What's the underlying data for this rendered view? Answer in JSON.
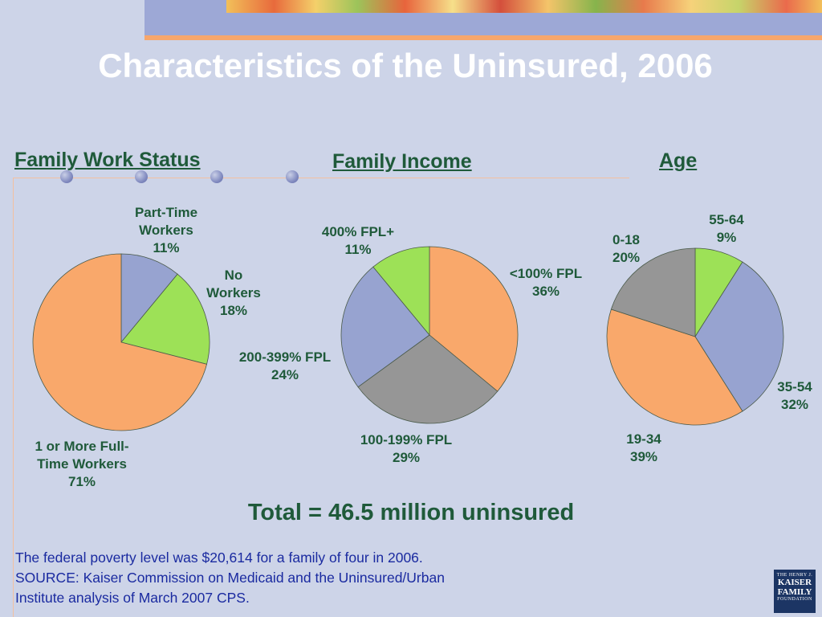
{
  "slide": {
    "title": "Characteristics of the Uninsured, 2006",
    "total": "Total = 46.5 million uninsured",
    "footnote_1": "The federal poverty level was $20,614 for a family of four in 2006.",
    "footnote_2": "SOURCE: Kaiser Commission on Medicaid and the Uninsured/Urban",
    "footnote_3": "Institute analysis of March 2007 CPS.",
    "logo": {
      "line1": "THE HENRY J.",
      "line2": "KAISER",
      "line3": "FAMILY",
      "line4": "FOUNDATION"
    }
  },
  "colors": {
    "orange": "#f9a86b",
    "blue": "#97a3d0",
    "green": "#9de157",
    "gray": "#969696",
    "heading": "#1f5a3a",
    "note": "#1a2aa0"
  },
  "chart_data": [
    {
      "type": "pie",
      "title": "Family Work Status",
      "slices": [
        {
          "name": "Part-Time Workers",
          "value": 11,
          "color": "blue",
          "label_lines": [
            "Part-Time",
            "Workers",
            "11%"
          ]
        },
        {
          "name": "No Workers",
          "value": 18,
          "color": "green",
          "label_lines": [
            "No",
            "Workers",
            "18%"
          ]
        },
        {
          "name": "1 or More Full-Time Workers",
          "value": 71,
          "color": "orange",
          "label_lines": [
            "1 or More Full-",
            "Time Workers",
            "71%"
          ]
        }
      ]
    },
    {
      "type": "pie",
      "title": "Family Income",
      "slices": [
        {
          "name": "<100% FPL",
          "value": 36,
          "color": "orange",
          "label_lines": [
            "<100% FPL",
            "36%"
          ]
        },
        {
          "name": "100-199% FPL",
          "value": 29,
          "color": "gray",
          "label_lines": [
            "100-199% FPL",
            "29%"
          ]
        },
        {
          "name": "200-399% FPL",
          "value": 24,
          "color": "blue",
          "label_lines": [
            "200-399% FPL",
            "24%"
          ]
        },
        {
          "name": "400% FPL+",
          "value": 11,
          "color": "green",
          "label_lines": [
            "400% FPL+",
            "11%"
          ]
        }
      ]
    },
    {
      "type": "pie",
      "title": "Age",
      "slices": [
        {
          "name": "55-64",
          "value": 9,
          "color": "green",
          "label_lines": [
            "55-64",
            "9%"
          ]
        },
        {
          "name": "35-54",
          "value": 32,
          "color": "blue",
          "label_lines": [
            "35-54",
            "32%"
          ]
        },
        {
          "name": "19-34",
          "value": 39,
          "color": "orange",
          "label_lines": [
            "19-34",
            "39%"
          ]
        },
        {
          "name": "0-18",
          "value": 20,
          "color": "gray",
          "label_lines": [
            "0-18",
            "20%"
          ]
        }
      ]
    }
  ]
}
